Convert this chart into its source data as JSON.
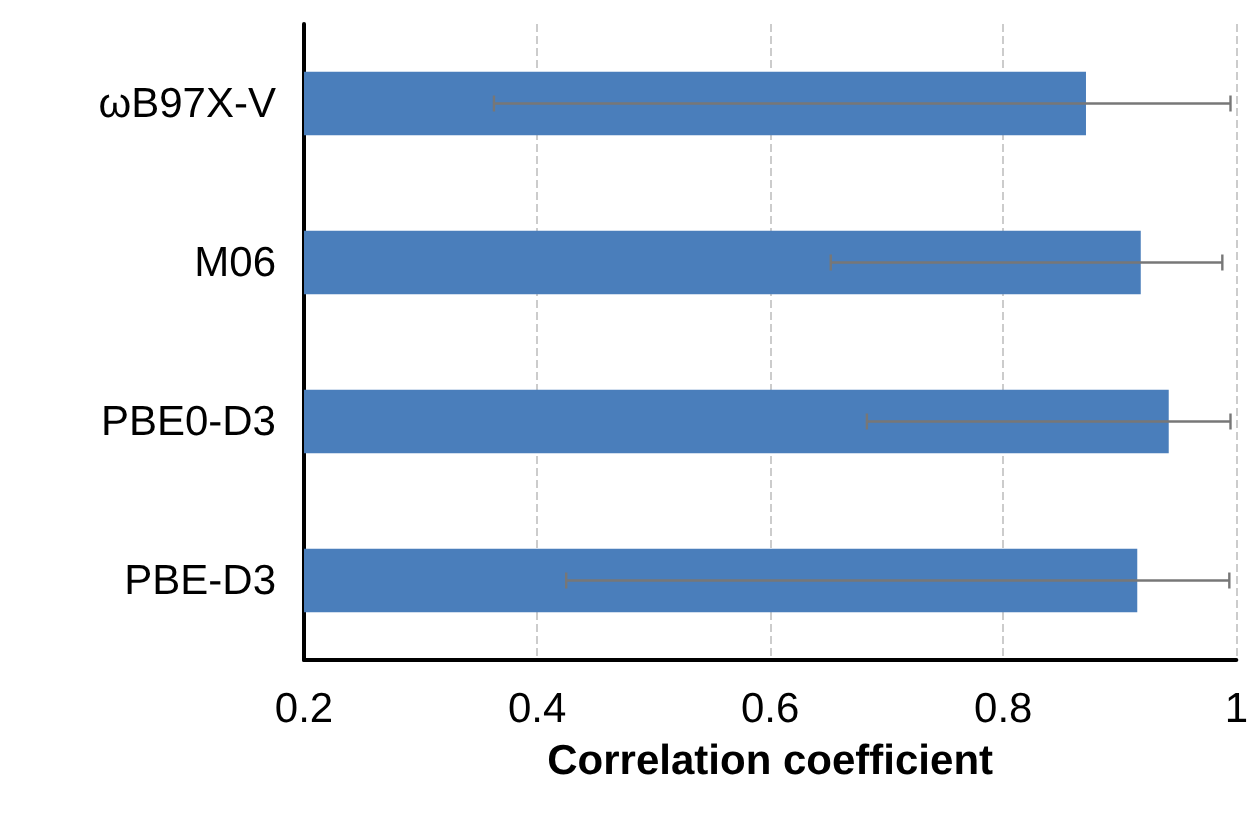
{
  "chart_data": {
    "type": "bar",
    "orientation": "horizontal",
    "xlabel": "Correlation coefficient",
    "categories": [
      "ωB97X-V",
      "M06",
      "PBE0-D3",
      "PBE-D3"
    ],
    "values": [
      0.871,
      0.918,
      0.942,
      0.915
    ],
    "errors": [
      [
        0.363,
        0.995
      ],
      [
        0.652,
        0.988
      ],
      [
        0.683,
        0.995
      ],
      [
        0.425,
        0.994
      ]
    ],
    "color": "#4a7ebb",
    "xlim": [
      0.2,
      1
    ],
    "xticks": [
      0.2,
      0.4,
      0.6,
      0.8,
      1
    ],
    "grid": "x"
  }
}
